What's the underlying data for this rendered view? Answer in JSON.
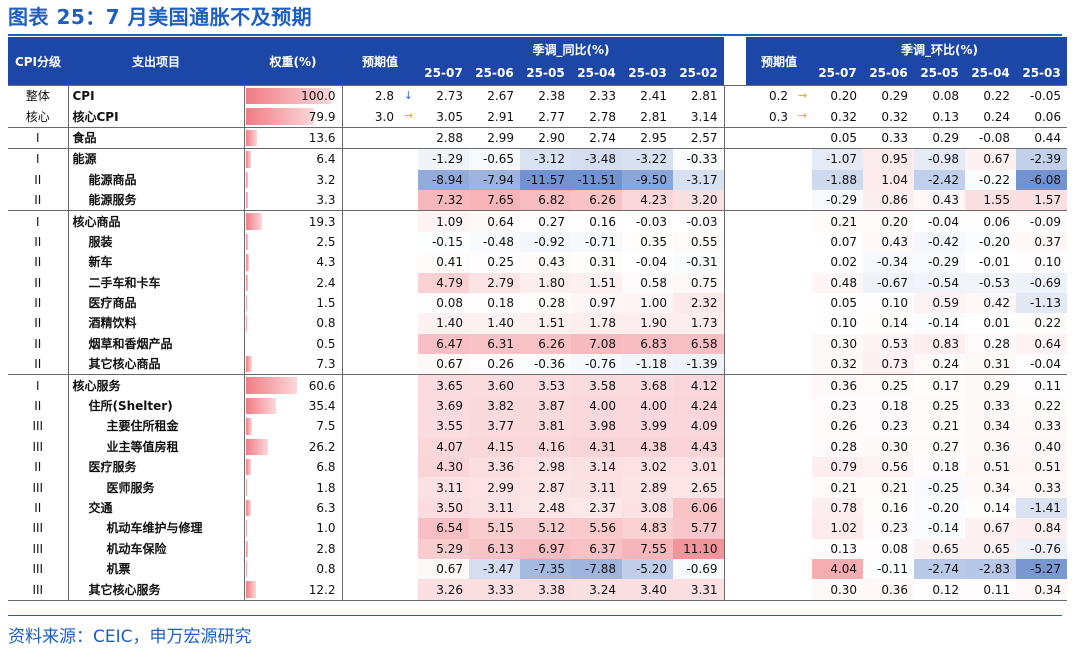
{
  "title": "图表 25：7 月美国通胀不及预期",
  "source": "资料来源：CEIC，申万宏源研究",
  "colors": {
    "header": "#1d47a6",
    "title": "#1f5fbf",
    "positive": "#f07c84",
    "negative": "#5a80c8"
  },
  "header": {
    "level": "CPI分级",
    "item": "支出项目",
    "weight": "权重(%)",
    "forecast_yoy": "预期值",
    "yoy_group": "季调_同比(%)",
    "forecast_mom": "预期值",
    "mom_group": "季调_环比(%)",
    "yoy_months": [
      "25-07",
      "25-06",
      "25-05",
      "25-04",
      "25-03",
      "25-02"
    ],
    "mom_months": [
      "25-07",
      "25-06",
      "25-05",
      "25-04",
      "25-03"
    ]
  },
  "arrows": {
    "down": "↓",
    "right": "→"
  },
  "rows": [
    {
      "level": "整体",
      "name": "CPI",
      "indent": 0,
      "weight": "100.0",
      "weight_share": 1.0,
      "f_yoy": "2.8",
      "f_yoy_arrow": "down",
      "yoy": [
        "2.73",
        "2.67",
        "2.38",
        "2.33",
        "2.41",
        "2.81"
      ],
      "f_mom": "0.2",
      "f_mom_arrow": "right",
      "mom": [
        "0.20",
        "0.29",
        "0.08",
        "0.22",
        "-0.05"
      ],
      "group_start": true,
      "heat": false
    },
    {
      "level": "核心",
      "name": "核心CPI",
      "indent": 0,
      "weight": "79.9",
      "weight_share": 0.799,
      "f_yoy": "3.0",
      "f_yoy_arrow": "right",
      "yoy": [
        "3.05",
        "2.91",
        "2.77",
        "2.78",
        "2.81",
        "3.14"
      ],
      "f_mom": "0.3",
      "f_mom_arrow": "right",
      "mom": [
        "0.32",
        "0.32",
        "0.13",
        "0.24",
        "0.06"
      ],
      "heat": false
    },
    {
      "level": "I",
      "name": "食品",
      "indent": 0,
      "weight": "13.6",
      "weight_share": 0.136,
      "yoy": [
        "2.88",
        "2.99",
        "2.90",
        "2.74",
        "2.95",
        "2.57"
      ],
      "mom": [
        "0.05",
        "0.33",
        "0.29",
        "-0.08",
        "0.44"
      ],
      "group_start": true,
      "heat": false
    },
    {
      "level": "I",
      "name": "能源",
      "indent": 0,
      "weight": "6.4",
      "weight_share": 0.064,
      "yoy": [
        "-1.29",
        "-0.65",
        "-3.12",
        "-3.48",
        "-3.22",
        "-0.33"
      ],
      "mom": [
        "-1.07",
        "0.95",
        "-0.98",
        "0.67",
        "-2.39"
      ],
      "group_start": true,
      "heat": true
    },
    {
      "level": "II",
      "name": "能源商品",
      "indent": 1,
      "weight": "3.2",
      "weight_share": 0.032,
      "yoy": [
        "-8.94",
        "-7.94",
        "-11.57",
        "-11.51",
        "-9.50",
        "-3.17"
      ],
      "mom": [
        "-1.88",
        "1.04",
        "-2.42",
        "-0.22",
        "-6.08"
      ],
      "heat": true
    },
    {
      "level": "II",
      "name": "能源服务",
      "indent": 1,
      "weight": "3.3",
      "weight_share": 0.033,
      "yoy": [
        "7.32",
        "7.65",
        "6.82",
        "6.26",
        "4.23",
        "3.20"
      ],
      "mom": [
        "-0.29",
        "0.86",
        "0.43",
        "1.55",
        "1.57"
      ],
      "heat": true
    },
    {
      "level": "I",
      "name": "核心商品",
      "indent": 0,
      "weight": "19.3",
      "weight_share": 0.193,
      "yoy": [
        "1.09",
        "0.64",
        "0.27",
        "0.16",
        "-0.03",
        "-0.03"
      ],
      "mom": [
        "0.21",
        "0.20",
        "-0.04",
        "0.06",
        "-0.09"
      ],
      "group_start": true,
      "heat": true
    },
    {
      "level": "II",
      "name": "服装",
      "indent": 1,
      "weight": "2.5",
      "weight_share": 0.025,
      "yoy": [
        "-0.15",
        "-0.48",
        "-0.92",
        "-0.71",
        "0.35",
        "0.55"
      ],
      "mom": [
        "0.07",
        "0.43",
        "-0.42",
        "-0.20",
        "0.37"
      ],
      "heat": true
    },
    {
      "level": "II",
      "name": "新车",
      "indent": 1,
      "weight": "4.3",
      "weight_share": 0.043,
      "yoy": [
        "0.41",
        "0.25",
        "0.43",
        "0.31",
        "-0.04",
        "-0.31"
      ],
      "mom": [
        "0.02",
        "-0.34",
        "-0.29",
        "-0.01",
        "0.10"
      ],
      "heat": true
    },
    {
      "level": "II",
      "name": "二手车和卡车",
      "indent": 1,
      "weight": "2.4",
      "weight_share": 0.024,
      "yoy": [
        "4.79",
        "2.79",
        "1.80",
        "1.51",
        "0.58",
        "0.75"
      ],
      "mom": [
        "0.48",
        "-0.67",
        "-0.54",
        "-0.53",
        "-0.69"
      ],
      "heat": true
    },
    {
      "level": "II",
      "name": "医疗商品",
      "indent": 1,
      "weight": "1.5",
      "weight_share": 0.015,
      "yoy": [
        "0.08",
        "0.18",
        "0.28",
        "0.97",
        "1.00",
        "2.32"
      ],
      "mom": [
        "0.05",
        "0.10",
        "0.59",
        "0.42",
        "-1.13"
      ],
      "heat": true
    },
    {
      "level": "II",
      "name": "酒精饮料",
      "indent": 1,
      "weight": "0.8",
      "weight_share": 0.008,
      "yoy": [
        "1.40",
        "1.40",
        "1.51",
        "1.78",
        "1.90",
        "1.73"
      ],
      "mom": [
        "0.10",
        "0.14",
        "-0.14",
        "0.01",
        "0.22"
      ],
      "heat": true
    },
    {
      "level": "II",
      "name": "烟草和香烟产品",
      "indent": 1,
      "weight": "0.5",
      "weight_share": 0.005,
      "yoy": [
        "6.47",
        "6.31",
        "6.26",
        "7.08",
        "6.83",
        "6.58"
      ],
      "mom": [
        "0.30",
        "0.53",
        "0.83",
        "0.28",
        "0.64"
      ],
      "heat": true
    },
    {
      "level": "II",
      "name": "其它核心商品",
      "indent": 1,
      "weight": "7.3",
      "weight_share": 0.073,
      "yoy": [
        "0.67",
        "0.26",
        "-0.36",
        "-0.76",
        "-1.18",
        "-1.39"
      ],
      "mom": [
        "0.32",
        "0.73",
        "0.24",
        "0.31",
        "-0.04"
      ],
      "heat": true
    },
    {
      "level": "I",
      "name": "核心服务",
      "indent": 0,
      "weight": "60.6",
      "weight_share": 0.606,
      "yoy": [
        "3.65",
        "3.60",
        "3.53",
        "3.58",
        "3.68",
        "4.12"
      ],
      "mom": [
        "0.36",
        "0.25",
        "0.17",
        "0.29",
        "0.11"
      ],
      "group_start": true,
      "heat": true
    },
    {
      "level": "II",
      "name": "住所(Shelter)",
      "indent": 1,
      "weight": "35.4",
      "weight_share": 0.354,
      "yoy": [
        "3.69",
        "3.82",
        "3.87",
        "4.00",
        "4.00",
        "4.24"
      ],
      "mom": [
        "0.23",
        "0.18",
        "0.25",
        "0.33",
        "0.22"
      ],
      "heat": true
    },
    {
      "level": "III",
      "name": "主要住所租金",
      "indent": 2,
      "weight": "7.5",
      "weight_share": 0.075,
      "yoy": [
        "3.55",
        "3.77",
        "3.81",
        "3.98",
        "3.99",
        "4.09"
      ],
      "mom": [
        "0.26",
        "0.23",
        "0.21",
        "0.34",
        "0.33"
      ],
      "heat": true
    },
    {
      "level": "III",
      "name": "业主等值房租",
      "indent": 2,
      "weight": "26.2",
      "weight_share": 0.262,
      "yoy": [
        "4.07",
        "4.15",
        "4.16",
        "4.31",
        "4.38",
        "4.43"
      ],
      "mom": [
        "0.28",
        "0.30",
        "0.27",
        "0.36",
        "0.40"
      ],
      "heat": true
    },
    {
      "level": "II",
      "name": "医疗服务",
      "indent": 1,
      "weight": "6.8",
      "weight_share": 0.068,
      "yoy": [
        "4.30",
        "3.36",
        "2.98",
        "3.14",
        "3.02",
        "3.01"
      ],
      "mom": [
        "0.79",
        "0.56",
        "0.18",
        "0.51",
        "0.51"
      ],
      "heat": true
    },
    {
      "level": "III",
      "name": "医师服务",
      "indent": 2,
      "weight": "1.8",
      "weight_share": 0.018,
      "yoy": [
        "3.11",
        "2.99",
        "2.87",
        "3.11",
        "2.89",
        "2.65"
      ],
      "mom": [
        "0.21",
        "0.21",
        "-0.25",
        "0.34",
        "0.33"
      ],
      "heat": true
    },
    {
      "level": "II",
      "name": "交通",
      "indent": 1,
      "weight": "6.3",
      "weight_share": 0.063,
      "yoy": [
        "3.50",
        "3.11",
        "2.48",
        "2.37",
        "3.08",
        "6.06"
      ],
      "mom": [
        "0.78",
        "0.16",
        "-0.20",
        "0.14",
        "-1.41"
      ],
      "heat": true
    },
    {
      "level": "III",
      "name": "机动车维护与修理",
      "indent": 2,
      "weight": "1.0",
      "weight_share": 0.01,
      "yoy": [
        "6.54",
        "5.15",
        "5.12",
        "5.56",
        "4.83",
        "5.77"
      ],
      "mom": [
        "1.02",
        "0.23",
        "-0.14",
        "0.67",
        "0.84"
      ],
      "heat": true
    },
    {
      "level": "III",
      "name": "机动车保险",
      "indent": 2,
      "weight": "2.8",
      "weight_share": 0.028,
      "yoy": [
        "5.29",
        "6.13",
        "6.97",
        "6.37",
        "7.55",
        "11.10"
      ],
      "mom": [
        "0.13",
        "0.08",
        "0.65",
        "0.65",
        "-0.76"
      ],
      "heat": true
    },
    {
      "level": "III",
      "name": "机票",
      "indent": 2,
      "weight": "0.8",
      "weight_share": 0.008,
      "yoy": [
        "0.67",
        "-3.47",
        "-7.35",
        "-7.88",
        "-5.20",
        "-0.69"
      ],
      "mom": [
        "4.04",
        "-0.11",
        "-2.74",
        "-2.83",
        "-5.27"
      ],
      "heat": true
    },
    {
      "level": "III",
      "name": "其它核心服务",
      "indent": 1,
      "weight": "12.2",
      "weight_share": 0.122,
      "yoy": [
        "3.26",
        "3.33",
        "3.38",
        "3.24",
        "3.40",
        "3.31"
      ],
      "mom": [
        "0.30",
        "0.36",
        "0.12",
        "0.11",
        "0.34"
      ],
      "heat": true,
      "group_end": true
    }
  ]
}
